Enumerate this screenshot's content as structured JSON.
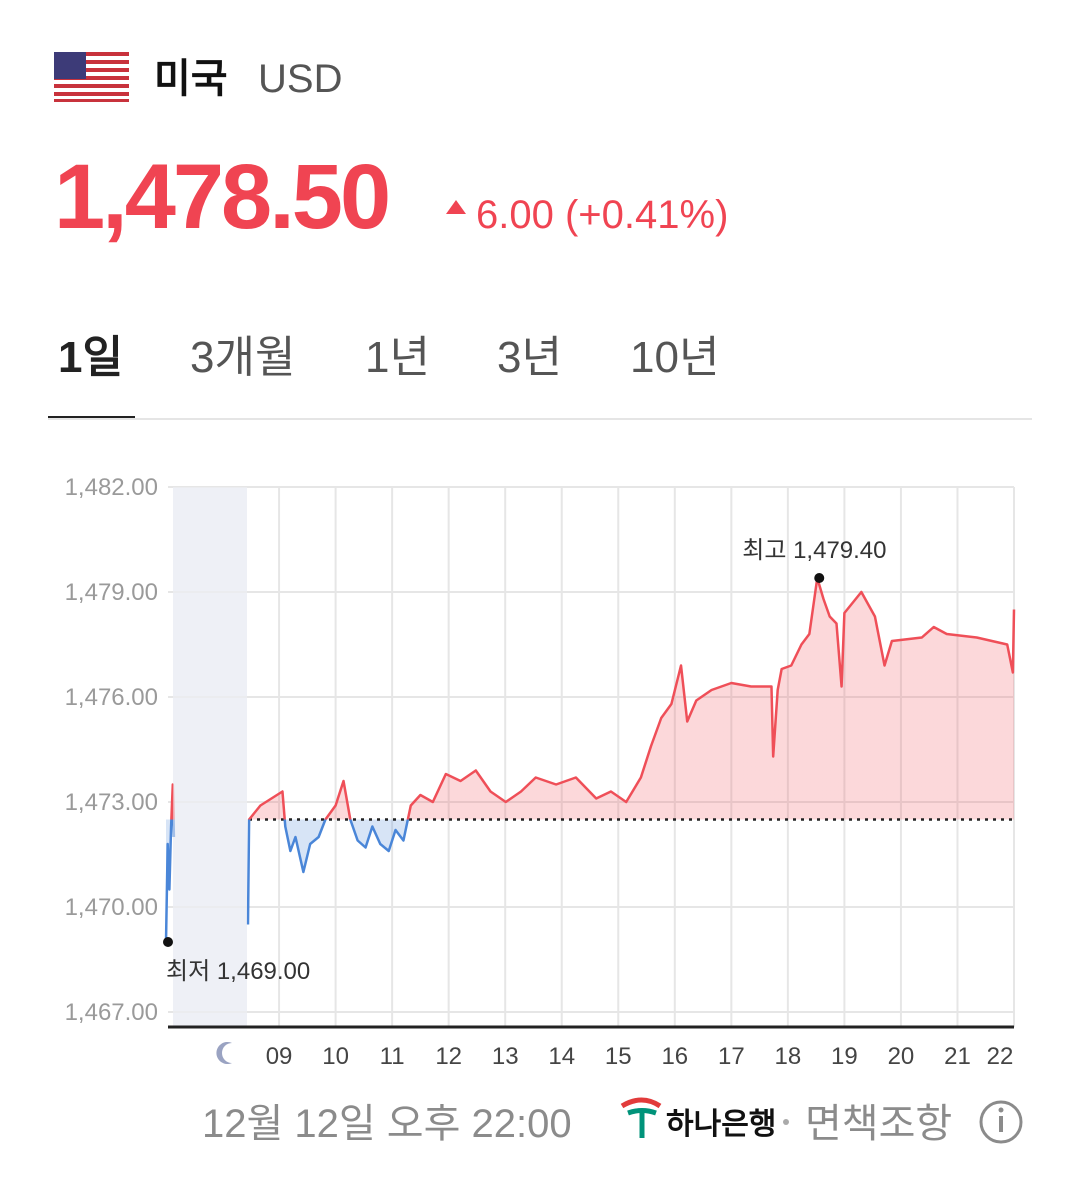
{
  "header": {
    "country": "미국",
    "currency": "USD",
    "price": "1,478.50",
    "change": "6.00 (+0.41%)"
  },
  "tabs": {
    "items": [
      "1일",
      "3개월",
      "1년",
      "3년",
      "10년"
    ],
    "active": 0
  },
  "chart_data": {
    "type": "line",
    "x": [
      7.0,
      7.03,
      7.06,
      7.09,
      7.12,
      7.14,
      7.3,
      8.45,
      8.47,
      8.67,
      9.06,
      9.11,
      9.2,
      9.29,
      9.43,
      9.55,
      9.7,
      9.82,
      10.0,
      10.14,
      10.26,
      10.39,
      10.53,
      10.65,
      10.79,
      10.94,
      11.06,
      11.2,
      11.33,
      11.5,
      11.72,
      11.95,
      12.21,
      12.48,
      12.74,
      13.01,
      13.28,
      13.54,
      13.9,
      14.25,
      14.61,
      14.87,
      15.14,
      15.4,
      15.58,
      15.76,
      15.94,
      16.11,
      16.22,
      16.38,
      16.65,
      17.0,
      17.35,
      17.71,
      17.74,
      17.82,
      17.89,
      18.06,
      18.24,
      18.38,
      18.52,
      18.63,
      18.74,
      18.86,
      18.95,
      19.0,
      19.3,
      19.54,
      19.71,
      19.84,
      20.37,
      20.58,
      20.81,
      21.34,
      21.88,
      21.98,
      22.0
    ],
    "values": [
      1469.0,
      1471.8,
      1470.5,
      1472.3,
      1473.5,
      1472.0,
      null,
      1469.5,
      1472.5,
      1472.9,
      1473.3,
      1472.3,
      1471.6,
      1472.0,
      1471.0,
      1471.8,
      1472.0,
      1472.5,
      1472.9,
      1473.6,
      1472.5,
      1471.9,
      1471.7,
      1472.3,
      1471.8,
      1471.6,
      1472.2,
      1471.9,
      1472.9,
      1473.2,
      1473.0,
      1473.8,
      1473.6,
      1473.9,
      1473.3,
      1473.0,
      1473.3,
      1473.7,
      1473.5,
      1473.7,
      1473.1,
      1473.3,
      1473.0,
      1473.7,
      1474.6,
      1475.4,
      1475.8,
      1476.9,
      1475.3,
      1475.9,
      1476.2,
      1476.4,
      1476.3,
      1476.3,
      1474.3,
      1476.2,
      1476.8,
      1476.9,
      1477.5,
      1477.8,
      1479.4,
      1478.8,
      1478.3,
      1478.1,
      1476.3,
      1478.4,
      1479.0,
      1478.3,
      1476.9,
      1477.6,
      1477.7,
      1478.0,
      1477.8,
      1477.7,
      1477.5,
      1476.7,
      1478.5
    ],
    "reference": 1472.5,
    "xlim": [
      7,
      22
    ],
    "ylim": [
      1467,
      1482
    ],
    "xticks": [
      {
        "value": 9,
        "label": "09"
      },
      10,
      11,
      12,
      13,
      14,
      15,
      16,
      17,
      18,
      19,
      20,
      21,
      22
    ],
    "yticks": [
      {
        "value": 1467,
        "label": "1,467.00"
      },
      {
        "value": 1470,
        "label": "1,470.00"
      },
      {
        "value": 1473,
        "label": "1,473.00"
      },
      {
        "value": 1476,
        "label": "1,476.00"
      },
      {
        "value": 1479,
        "label": "1,479.00"
      },
      {
        "value": 1482,
        "label": "1,482.00"
      }
    ],
    "grid": true,
    "color_up": "#ef4f58",
    "color_down": "#4a86d8",
    "annotations": [
      {
        "label": "최고 1,479.40",
        "x": 18.52,
        "y": 1479.4
      },
      {
        "label": "최저 1,469.00",
        "x": 7.0,
        "y": 1469.0
      }
    ]
  },
  "footer": {
    "timestamp": "12월 12일 오후 22:00",
    "bank": "하나은행",
    "disclaimer": "면책조항"
  }
}
